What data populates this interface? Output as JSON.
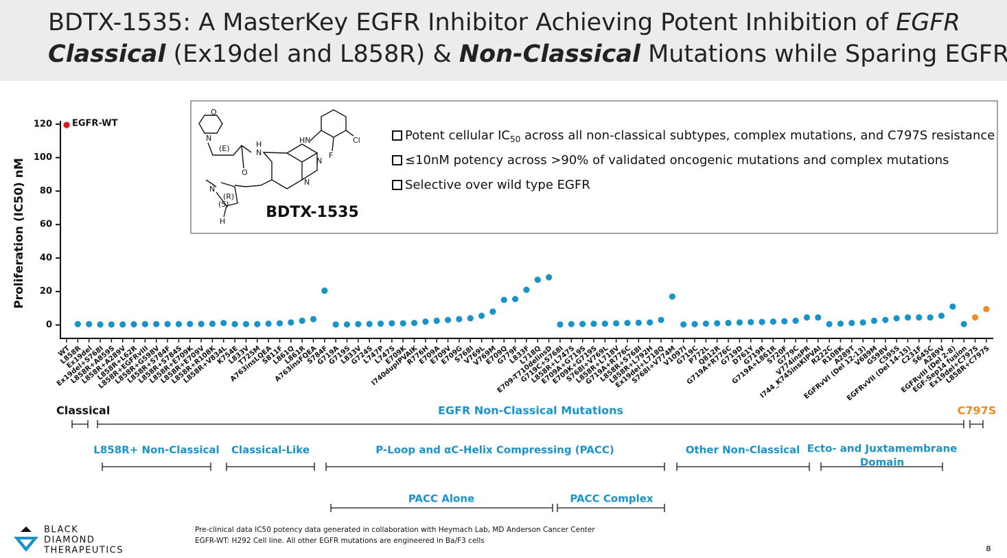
{
  "header": {
    "title_parts": [
      "BDTX-1535: A MasterKey EGFR Inhibitor Achieving Potent Inhibition of ",
      "EGFR",
      "Classical",
      " (Ex19del and L858R) & ",
      "Non-Classical",
      " Mutations while Sparing EGFR-WT"
    ]
  },
  "callout": {
    "compound": "BDTX-1535",
    "structure_labels": [
      "O",
      "N",
      "(E)",
      "O",
      "H",
      "N",
      "HN",
      "Cl",
      "F",
      "N",
      "N",
      "N",
      "(R)",
      "(S)",
      "H"
    ],
    "bullets": [
      [
        "Potent cellular IC",
        "50",
        " across all non-classical subtypes, complex mutations, and C797S resistance"
      ],
      [
        "≤10nM potency across >90% of validated oncogenic mutations and complex mutations"
      ],
      [
        "Selective over wild type EGFR"
      ]
    ]
  },
  "chart_data": {
    "type": "scatter",
    "y_label": "Proliferation (IC50) nM",
    "annotation": "EGFR-WT",
    "categories": [
      "WT",
      "L858R",
      "Ex19del",
      "Ex19del+S768I",
      "L858R+A859S",
      "L858R+A289V",
      "L858R+L62R",
      "L858R+EGFRvIII",
      "L858R+G598V",
      "L858R+S784F",
      "L858R+S784S",
      "L858R+E709K",
      "L858R+E709V",
      "L858R+R108K",
      "L858R+V834L",
      "K754E",
      "L833V",
      "T725M",
      "A763insLQEA",
      "S811F",
      "L861Q",
      "L861R",
      "A763insFQEA",
      "S784F",
      "G719A",
      "G719S",
      "L833V",
      "G724S",
      "L747P",
      "L747S",
      "E709K",
      "I740dupIPVAIK",
      "R776H",
      "E709A",
      "E709V",
      "E709G",
      "S768I",
      "V769L",
      "V769M",
      "E709Q",
      "G779F",
      "L833F",
      "L718Q",
      "E709-T710delinsD",
      "G719C+S768I",
      "L858R+L747S",
      "E709A+G719S",
      "E709K+G719S",
      "S768I+V769L",
      "L858R+L718V",
      "G719A+R776C",
      "L858R+S768I",
      "L858R+L792H",
      "Ex19del+L718Q",
      "S768I+V774M",
      "V1097I",
      "G719C",
      "P772L",
      "Q812R",
      "G719A+R776C",
      "G719D",
      "D761Y",
      "G719R",
      "G719A+L861R",
      "S720F",
      "G779C",
      "V774insPR",
      "I744_K745insKIPVAI",
      "R222C",
      "R108K",
      "A289T",
      "EGFRvVI (Del 12-13)",
      "V689M",
      "G598V",
      "C595S",
      "EGFRvVII (Del 14-15)",
      "C231F",
      "S645C",
      "A289V",
      "EGFRvIII (Del 2-8)",
      "EGF-Sep14 fusion",
      "Ex19del+C797S",
      "L858R+C797S"
    ],
    "values": [
      119.5,
      0.5,
      0.5,
      0.3,
      0.3,
      0.3,
      0.4,
      0.5,
      0.5,
      0.5,
      0.5,
      0.6,
      0.6,
      0.7,
      1.2,
      0.5,
      0.5,
      0.5,
      0.8,
      1,
      1.5,
      2.5,
      3.5,
      20.5,
      0.3,
      0.3,
      0.5,
      0.6,
      0.8,
      1,
      1,
      1.2,
      2,
      2.5,
      3,
      3.5,
      4,
      5.5,
      8,
      15,
      15.5,
      21,
      27,
      28.5,
      0.3,
      0.5,
      0.6,
      0.7,
      0.8,
      1,
      1.2,
      1.3,
      1.5,
      3,
      17,
      0.3,
      0.5,
      0.8,
      1,
      1.2,
      1.5,
      1.7,
      1.8,
      2,
      2.2,
      2.5,
      4.5,
      4.5,
      0.5,
      0.8,
      1.2,
      1.5,
      2.5,
      3,
      4,
      4.5,
      4.5,
      4.5,
      5.5,
      11,
      0.5,
      4.5,
      9.5
    ],
    "colors": [
      "#e31a1c",
      "#1a93c9",
      "#1a93c9",
      "#1a93c9",
      "#1a93c9",
      "#1a93c9",
      "#1a93c9",
      "#1a93c9",
      "#1a93c9",
      "#1a93c9",
      "#1a93c9",
      "#1a93c9",
      "#1a93c9",
      "#1a93c9",
      "#1a93c9",
      "#1a93c9",
      "#1a93c9",
      "#1a93c9",
      "#1a93c9",
      "#1a93c9",
      "#1a93c9",
      "#1a93c9",
      "#1a93c9",
      "#1a93c9",
      "#1a93c9",
      "#1a93c9",
      "#1a93c9",
      "#1a93c9",
      "#1a93c9",
      "#1a93c9",
      "#1a93c9",
      "#1a93c9",
      "#1a93c9",
      "#1a93c9",
      "#1a93c9",
      "#1a93c9",
      "#1a93c9",
      "#1a93c9",
      "#1a93c9",
      "#1a93c9",
      "#1a93c9",
      "#1a93c9",
      "#1a93c9",
      "#1a93c9",
      "#1a93c9",
      "#1a93c9",
      "#1a93c9",
      "#1a93c9",
      "#1a93c9",
      "#1a93c9",
      "#1a93c9",
      "#1a93c9",
      "#1a93c9",
      "#1a93c9",
      "#1a93c9",
      "#1a93c9",
      "#1a93c9",
      "#1a93c9",
      "#1a93c9",
      "#1a93c9",
      "#1a93c9",
      "#1a93c9",
      "#1a93c9",
      "#1a93c9",
      "#1a93c9",
      "#1a93c9",
      "#1a93c9",
      "#1a93c9",
      "#1a93c9",
      "#1a93c9",
      "#1a93c9",
      "#1a93c9",
      "#1a93c9",
      "#1a93c9",
      "#1a93c9",
      "#1a93c9",
      "#1a93c9",
      "#1a93c9",
      "#1a93c9",
      "#1a93c9",
      "#1a93c9",
      "#f28a1e",
      "#f28a1e"
    ],
    "ylim": [
      -8,
      122
    ],
    "yticks": [
      0,
      20,
      40,
      60,
      80,
      100,
      120
    ]
  },
  "groups": {
    "classical": "Classical",
    "non_classical": "EGFR Non-Classical Mutations",
    "c797s": "C797S",
    "subgroups": [
      "L858R+ Non-Classical",
      "Classical-Like",
      "P-Loop and αC-Helix Compressing (PACC)",
      "Other Non-Classical",
      "Ecto- and Juxtamembrane",
      "Domain"
    ],
    "pacc": [
      "PACC Alone",
      "PACC Complex"
    ]
  },
  "footer": {
    "logo": [
      "BLACK",
      "DIAMOND",
      "THERAPEUTICS"
    ],
    "notes": [
      "Pre-clinical data IC50 potency data generated in collaboration with Heymach Lab, MD Anderson Cancer Center",
      "EGFR-WT: H292 Cell line. All other EGFR mutations are engineered in Ba/F3 cells"
    ],
    "page": "8"
  }
}
